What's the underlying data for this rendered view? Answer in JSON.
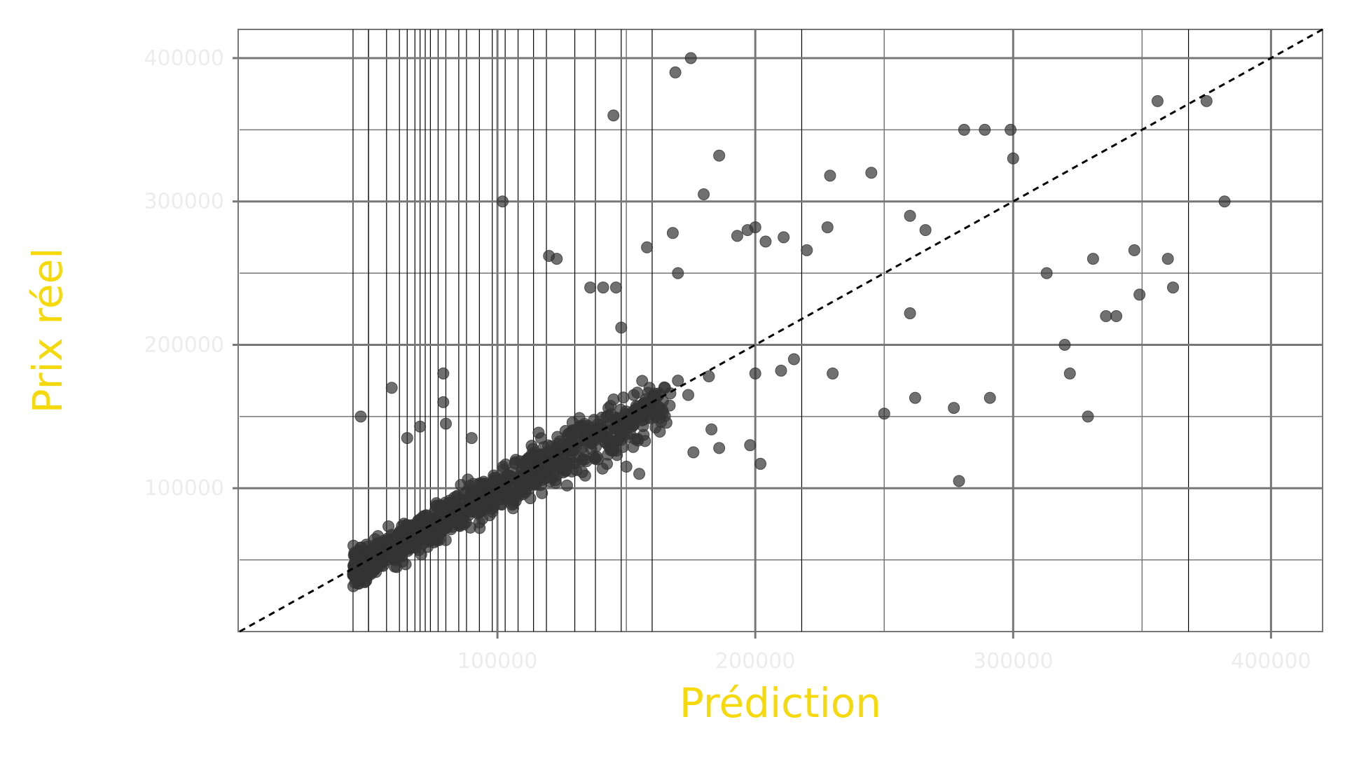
{
  "chart_data": {
    "type": "scatter",
    "xlabel": "Prédiction",
    "ylabel": "Prix réel",
    "xlim": [
      0,
      420000
    ],
    "ylim": [
      0,
      420000
    ],
    "xticks": [
      100000,
      200000,
      300000,
      400000
    ],
    "xtick_labels": [
      "100000",
      "200000",
      "300000",
      "400000"
    ],
    "yticks": [
      100000,
      200000,
      300000,
      400000
    ],
    "ytick_labels": [
      "100000",
      "200000",
      "300000",
      "400000"
    ],
    "grid": true,
    "identity_line": true,
    "colors": {
      "label": "#f5d90a",
      "tick_label": "#ececec",
      "point": "#333333",
      "grid": "#777777",
      "ref_line": "#000000"
    },
    "vertical_guides_x": [
      44000,
      50000,
      57000,
      62000,
      65000,
      68000,
      70000,
      72000,
      74000,
      77000,
      80000,
      85000,
      88000,
      93000,
      98000,
      103000,
      108000,
      114000,
      119000,
      130000,
      138000,
      148000,
      160000,
      218000,
      368000
    ],
    "points": [
      [
        47000,
        150000
      ],
      [
        59000,
        170000
      ],
      [
        79000,
        160000
      ],
      [
        79000,
        180000
      ],
      [
        80000,
        145000
      ],
      [
        70000,
        143000
      ],
      [
        65000,
        135000
      ],
      [
        90000,
        135000
      ],
      [
        102000,
        300000
      ],
      [
        123000,
        260000
      ],
      [
        136000,
        240000
      ],
      [
        141000,
        240000
      ],
      [
        146000,
        240000
      ],
      [
        148000,
        212000
      ],
      [
        169000,
        390000
      ],
      [
        175000,
        400000
      ],
      [
        145000,
        360000
      ],
      [
        180000,
        305000
      ],
      [
        186000,
        332000
      ],
      [
        197000,
        280000
      ],
      [
        229000,
        318000
      ],
      [
        245000,
        320000
      ],
      [
        299000,
        350000
      ],
      [
        300000,
        330000
      ],
      [
        356000,
        370000
      ],
      [
        375000,
        370000
      ],
      [
        382000,
        300000
      ],
      [
        281000,
        350000
      ],
      [
        289000,
        350000
      ],
      [
        260000,
        290000
      ],
      [
        266000,
        280000
      ],
      [
        228000,
        282000
      ],
      [
        220000,
        266000
      ],
      [
        211000,
        275000
      ],
      [
        204000,
        272000
      ],
      [
        200000,
        282000
      ],
      [
        193000,
        276000
      ],
      [
        168000,
        278000
      ],
      [
        158000,
        268000
      ],
      [
        120000,
        262000
      ],
      [
        165000,
        170000
      ],
      [
        170000,
        175000
      ],
      [
        174000,
        165000
      ],
      [
        182000,
        178000
      ],
      [
        200000,
        180000
      ],
      [
        210000,
        182000
      ],
      [
        215000,
        190000
      ],
      [
        230000,
        180000
      ],
      [
        250000,
        152000
      ],
      [
        262000,
        163000
      ],
      [
        277000,
        156000
      ],
      [
        291000,
        163000
      ],
      [
        322000,
        180000
      ],
      [
        329000,
        150000
      ],
      [
        336000,
        220000
      ],
      [
        349000,
        235000
      ],
      [
        362000,
        240000
      ],
      [
        347000,
        266000
      ],
      [
        331000,
        260000
      ],
      [
        313000,
        250000
      ],
      [
        320000,
        200000
      ],
      [
        340000,
        220000
      ],
      [
        360000,
        260000
      ],
      [
        170000,
        250000
      ],
      [
        260000,
        222000
      ],
      [
        279000,
        105000
      ],
      [
        202000,
        117000
      ],
      [
        198000,
        130000
      ],
      [
        183000,
        141000
      ],
      [
        176000,
        125000
      ],
      [
        186000,
        128000
      ],
      [
        155000,
        110000
      ],
      [
        150000,
        115000
      ],
      [
        133000,
        120000
      ],
      [
        122000,
        110000
      ]
    ]
  }
}
